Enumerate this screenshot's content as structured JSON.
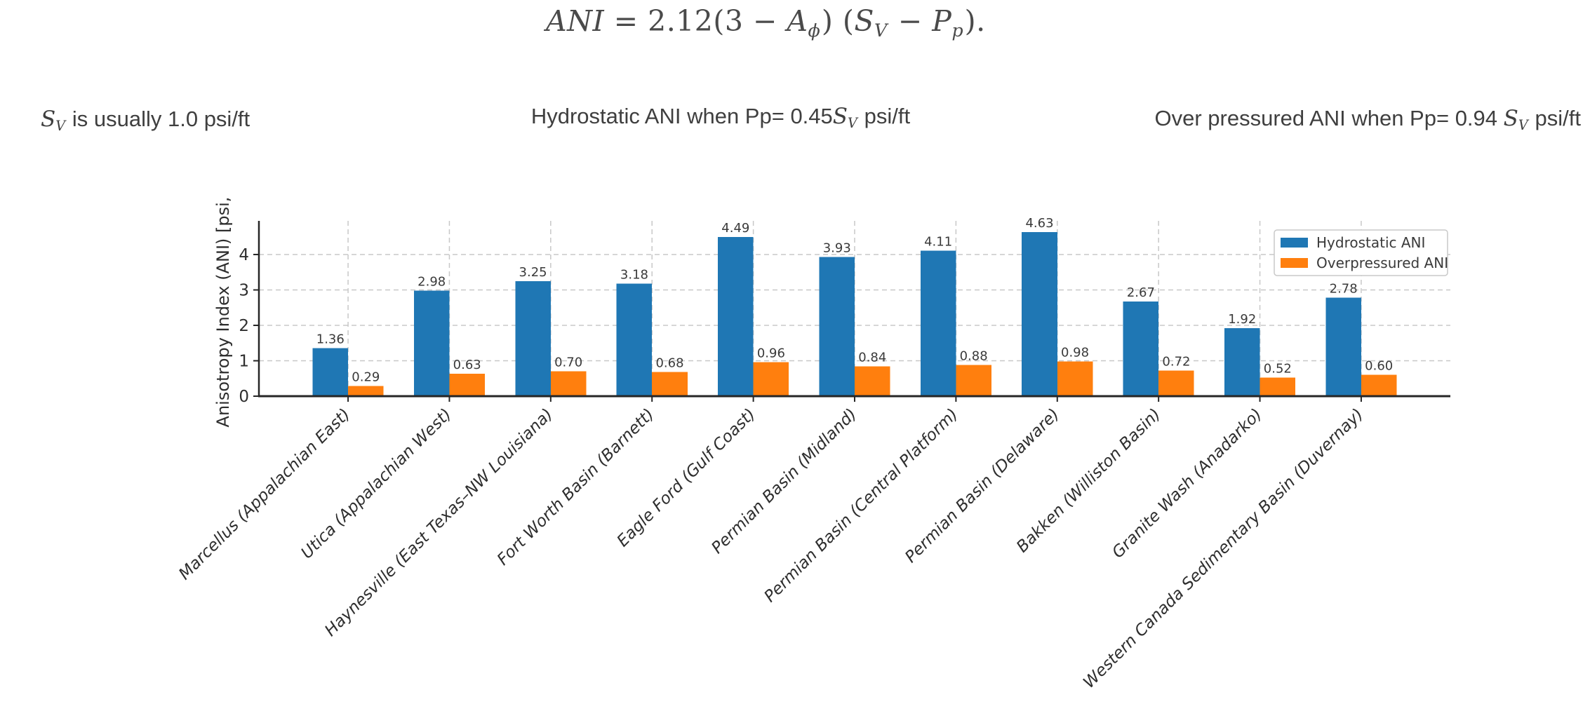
{
  "formula": {
    "segments": [
      {
        "t": "ANI",
        "s": "i"
      },
      {
        "t": " = 2.12(3 − "
      },
      {
        "t": "A",
        "s": "i"
      },
      {
        "t": "ϕ",
        "s": "sub"
      },
      {
        "t": ") ("
      },
      {
        "t": "S",
        "s": "i"
      },
      {
        "t": "V",
        "s": "sub"
      },
      {
        "t": " − "
      },
      {
        "t": "P",
        "s": "i"
      },
      {
        "t": "p",
        "s": "sub"
      },
      {
        "t": ")."
      }
    ]
  },
  "subtitles": {
    "left": {
      "segments": [
        {
          "t": "S",
          "s": "i"
        },
        {
          "t": "V",
          "s": "sub"
        },
        {
          "t": " is usually 1.0 psi/ft"
        }
      ]
    },
    "middle": {
      "segments": [
        {
          "t": "Hydrostatic ANI when Pp= 0.45"
        },
        {
          "t": "S",
          "s": "i"
        },
        {
          "t": "V",
          "s": "sub"
        },
        {
          "t": " psi/ft"
        }
      ]
    },
    "right": {
      "segments": [
        {
          "t": "Over pressured ANI when Pp= 0.94 "
        },
        {
          "t": "S",
          "s": "i"
        },
        {
          "t": "V",
          "s": "sub"
        },
        {
          "t": " psi/ft"
        }
      ]
    }
  },
  "chart_data": {
    "type": "bar",
    "title": "",
    "xlabel": "",
    "ylabel": "Anisotropy Index (ANI) [psi,",
    "categories": [
      "Marcellus (Appalachian East)",
      "Utica (Appalachian West)",
      "Haynesville (East Texas–NW Louisiana)",
      "Fort Worth Basin (Barnett)",
      "Eagle Ford (Gulf Coast)",
      "Permian Basin (Midland)",
      "Permian Basin (Central Platform)",
      "Permian Basin (Delaware)",
      "Bakken (Williston Basin)",
      "Granite Wash (Anadarko)",
      "Western Canada Sedimentary Basin (Duvernay)"
    ],
    "series": [
      {
        "name": "Hydrostatic ANI",
        "color": "#1f77b4",
        "values": [
          1.36,
          2.98,
          3.25,
          3.18,
          4.49,
          3.93,
          4.11,
          4.63,
          2.67,
          1.92,
          2.78
        ]
      },
      {
        "name": "Overpressured ANI",
        "color": "#ff7f0e",
        "values": [
          0.29,
          0.63,
          0.7,
          0.68,
          0.96,
          0.84,
          0.88,
          0.98,
          0.72,
          0.52,
          0.6
        ]
      }
    ],
    "yticks": [
      0,
      1,
      2,
      3,
      4
    ],
    "ylim": [
      0,
      4.95
    ],
    "grid": true,
    "legend_position": "upper right",
    "value_label_decimals": 2,
    "colors": {
      "grid": "#c8c8c8",
      "spine": "#262626",
      "tick_text": "#2e2e2e",
      "value_text": "#3a3a3a",
      "legend_border": "#c9c9c9",
      "legend_bg": "#ffffff"
    }
  }
}
